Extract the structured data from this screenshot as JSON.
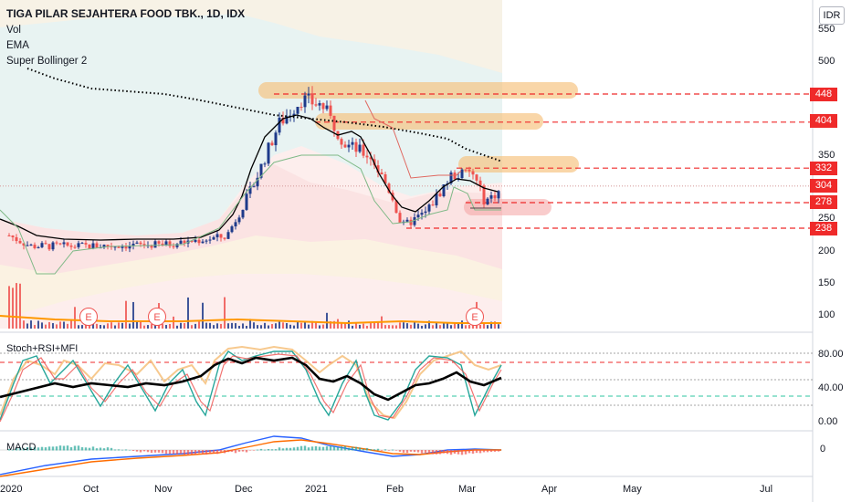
{
  "chart_data": [
    {
      "type": "candlestick",
      "title": "TIGA PILAR SEJAHTERA FOOD TBK., 1D, IDX",
      "currency": "IDR",
      "indicators": [
        "Vol",
        "EMA",
        "Super Bollinger 2"
      ],
      "ylim": [
        80,
        580
      ],
      "y_ticks": [
        100,
        150,
        200,
        250,
        300,
        350,
        400,
        450,
        500,
        550
      ],
      "x_labels": [
        "2020",
        "Oct",
        "Nov",
        "Dec",
        "2021",
        "Feb",
        "Mar",
        "Apr",
        "May",
        "Jul"
      ],
      "price_levels": [
        448,
        404,
        332,
        304,
        278,
        238
      ],
      "earnings_markers": [
        "E",
        "E",
        "E"
      ],
      "close_series_approx": [
        {
          "date": "2020-09-01",
          "close": 228
        },
        {
          "date": "2020-09-10",
          "close": 210
        },
        {
          "date": "2020-10-01",
          "close": 210
        },
        {
          "date": "2020-11-01",
          "close": 212
        },
        {
          "date": "2020-11-25",
          "close": 225
        },
        {
          "date": "2020-12-05",
          "close": 300
        },
        {
          "date": "2020-12-15",
          "close": 400
        },
        {
          "date": "2020-12-24",
          "close": 440
        },
        {
          "date": "2021-01-01",
          "close": 430
        },
        {
          "date": "2021-01-10",
          "close": 370
        },
        {
          "date": "2021-01-20",
          "close": 350
        },
        {
          "date": "2021-01-28",
          "close": 290
        },
        {
          "date": "2021-02-01",
          "close": 240
        },
        {
          "date": "2021-02-10",
          "close": 262
        },
        {
          "date": "2021-02-20",
          "close": 320
        },
        {
          "date": "2021-02-28",
          "close": 325
        },
        {
          "date": "2021-03-05",
          "close": 280
        },
        {
          "date": "2021-03-12",
          "close": 300
        }
      ]
    },
    {
      "type": "line",
      "title": "Stoch+RSI+MFI",
      "y_ticks": [
        "80.00",
        "40.00",
        "0.00"
      ],
      "levels": [
        80,
        70,
        50,
        30,
        20
      ]
    },
    {
      "type": "bar",
      "title": "MACD",
      "y_ticks": [
        "0"
      ]
    }
  ],
  "colors": {
    "up": "#26a69a",
    "down": "#ef5350",
    "candle_up": "#1e3a8a",
    "level_line": "#ef2a2a",
    "ema": "#000000",
    "highlight": "#f6c07a",
    "volume": "#1e3a8a"
  }
}
